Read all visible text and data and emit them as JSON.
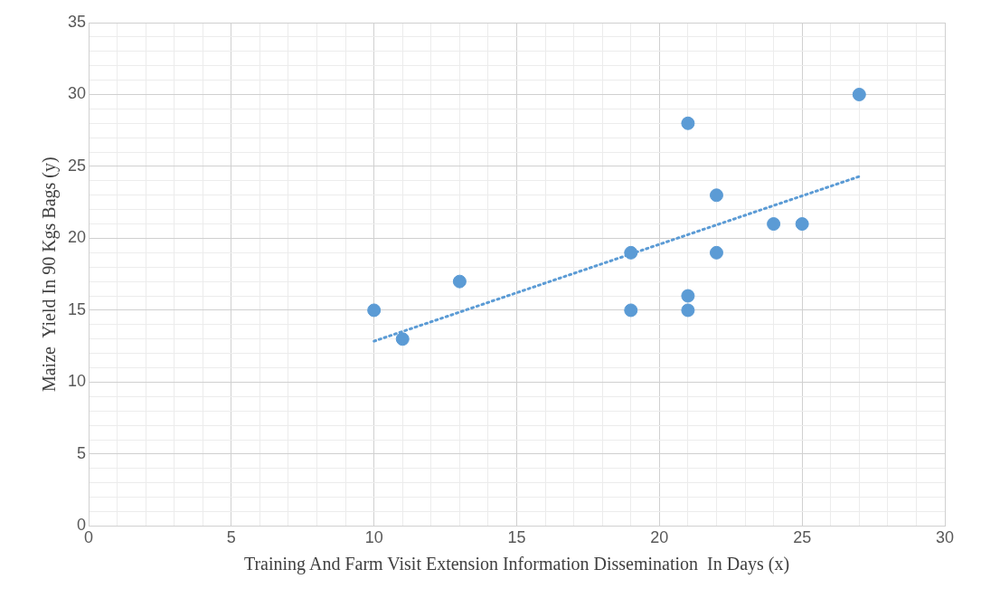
{
  "chart_data": {
    "type": "scatter",
    "xlabel": "Training And Farm Visit Extension Information Dissemination  In Days (x)",
    "ylabel": "Maize  Yield In 90 Kgs Bags (y)",
    "marker": "circle",
    "grid": true,
    "legend": false,
    "xlim": [
      0,
      30
    ],
    "ylim": [
      0,
      35
    ],
    "xticks": [
      0,
      {
        "value": 1,
        "label": null
      },
      {
        "value": 2,
        "label": null
      },
      {
        "value": 3,
        "label": null
      },
      {
        "value": 4,
        "label": null
      },
      5,
      {
        "value": 6,
        "label": null
      },
      {
        "value": 7,
        "label": null
      },
      {
        "value": 8,
        "label": null
      },
      {
        "value": 9,
        "label": null
      },
      10,
      {
        "value": 11,
        "label": null
      },
      {
        "value": 12,
        "label": null
      },
      {
        "value": 13,
        "label": null
      },
      {
        "value": 14,
        "label": null
      },
      15,
      {
        "value": 16,
        "label": null
      },
      {
        "value": 17,
        "label": null
      },
      {
        "value": 18,
        "label": null
      },
      {
        "value": 19,
        "label": null
      },
      20,
      {
        "value": 21,
        "label": null
      },
      {
        "value": 22,
        "label": null
      },
      {
        "value": 23,
        "label": null
      },
      {
        "value": 24,
        "label": null
      },
      25,
      {
        "value": 26,
        "label": null
      },
      {
        "value": 27,
        "label": null
      },
      {
        "value": 28,
        "label": null
      },
      {
        "value": 29,
        "label": null
      },
      30
    ],
    "yticks": [
      0,
      {
        "value": 1,
        "label": null
      },
      {
        "value": 2,
        "label": null
      },
      {
        "value": 3,
        "label": null
      },
      {
        "value": 4,
        "label": null
      },
      5,
      {
        "value": 6,
        "label": null
      },
      {
        "value": 7,
        "label": null
      },
      {
        "value": 8,
        "label": null
      },
      {
        "value": 9,
        "label": null
      },
      10,
      {
        "value": 11,
        "label": null
      },
      {
        "value": 12,
        "label": null
      },
      {
        "value": 13,
        "label": null
      },
      {
        "value": 14,
        "label": null
      },
      15,
      {
        "value": 16,
        "label": null
      },
      {
        "value": 17,
        "label": null
      },
      {
        "value": 18,
        "label": null
      },
      {
        "value": 19,
        "label": null
      },
      20,
      {
        "value": 21,
        "label": null
      },
      {
        "value": 22,
        "label": null
      },
      {
        "value": 23,
        "label": null
      },
      {
        "value": 24,
        "label": null
      },
      25,
      {
        "value": 26,
        "label": null
      },
      {
        "value": 27,
        "label": null
      },
      {
        "value": 28,
        "label": null
      },
      {
        "value": 29,
        "label": null
      },
      30,
      {
        "value": 31,
        "label": null
      },
      {
        "value": 32,
        "label": null
      },
      {
        "value": 33,
        "label": null
      },
      {
        "value": 34,
        "label": null
      },
      35
    ],
    "series": [
      {
        "type": "scatter",
        "color": "#5b9bd5",
        "x": [
          10,
          11,
          13,
          19,
          19,
          21,
          21,
          21,
          22,
          22,
          24,
          25,
          27
        ],
        "values": [
          15,
          13,
          17,
          19,
          15,
          28,
          16,
          15,
          23,
          19,
          21,
          21,
          30
        ]
      },
      {
        "type": "line",
        "color": "#5b9bd5",
        "marker": "none",
        "line_style": "dotted",
        "x": [
          10,
          27
        ],
        "values": [
          12.85,
          24.3
        ]
      }
    ]
  }
}
